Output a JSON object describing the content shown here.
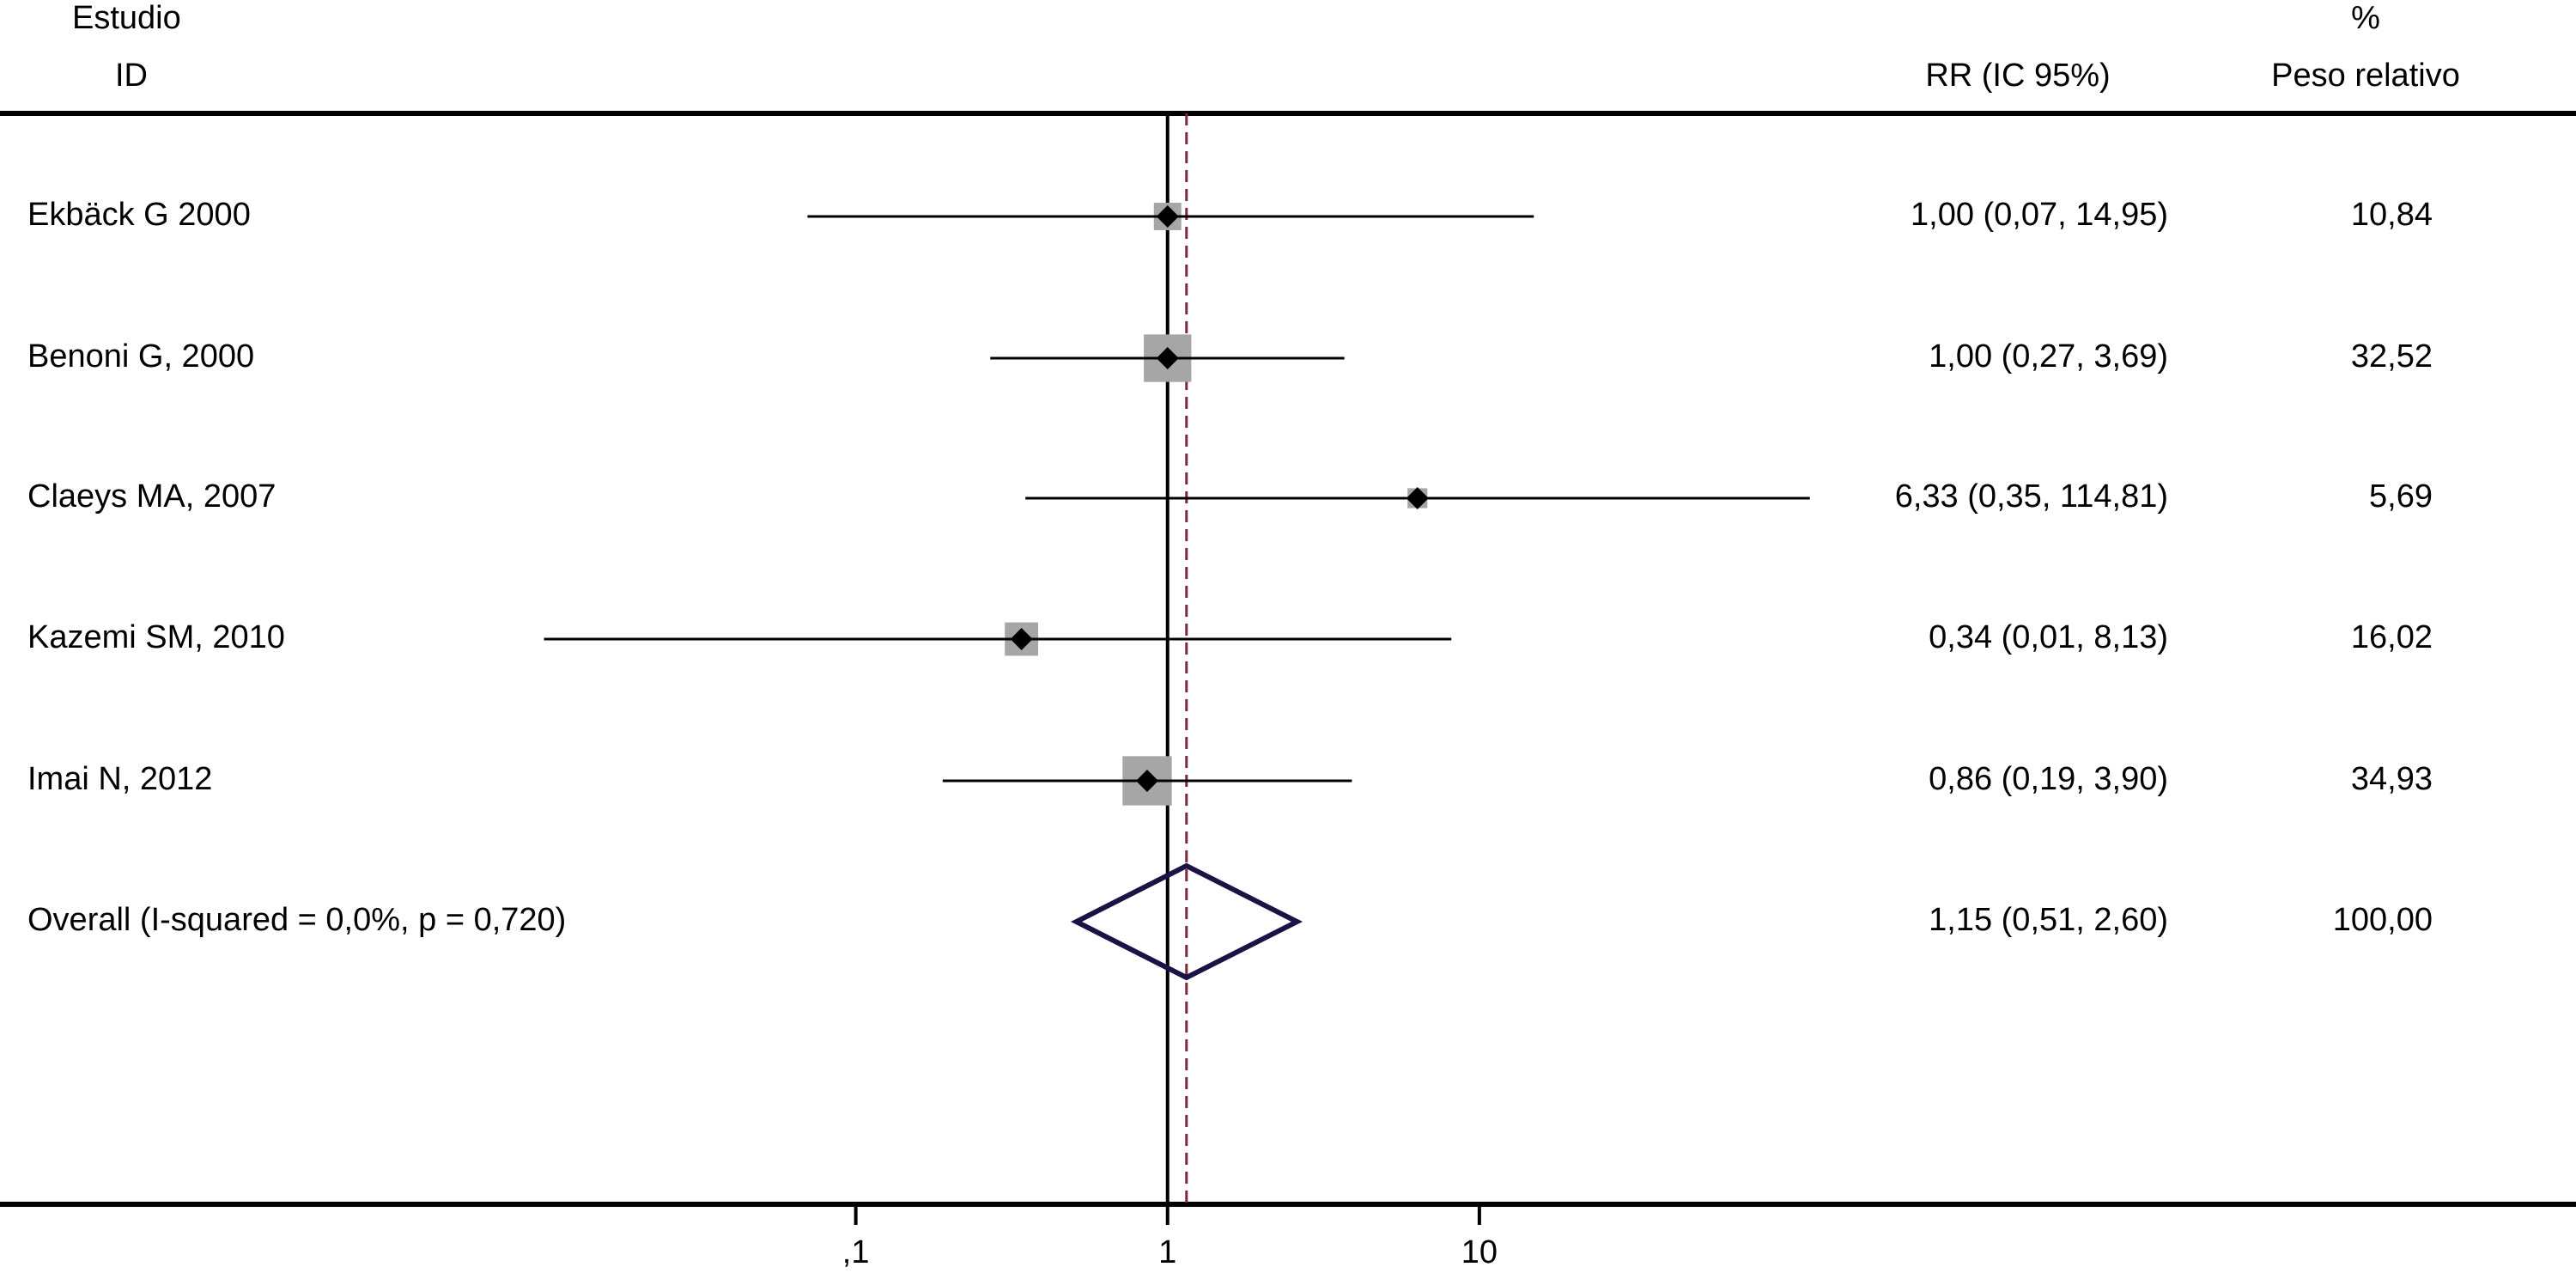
{
  "chart_data": {
    "type": "forest",
    "header": {
      "study_top": "Estudio",
      "study": "ID",
      "effect": "RR (IC 95%)",
      "weight_top": "%",
      "weight": "Peso relativo"
    },
    "categories": [
      "Ekbäck G 2000",
      "Benoni G, 2000",
      "Claeys MA, 2007",
      "Kazemi SM, 2010",
      "Imai N, 2012",
      "Overall  (I-squared = 0,0%, p = 0,720)"
    ],
    "values": [
      1.0,
      1.0,
      6.33,
      0.34,
      0.86,
      1.15
    ],
    "lower": [
      0.07,
      0.27,
      0.35,
      0.01,
      0.19,
      0.51
    ],
    "upper": [
      14.95,
      3.69,
      114.81,
      8.13,
      3.9,
      2.6
    ],
    "value_labels": [
      "1,00 (0,07, 14,95)",
      "1,00 (0,27, 3,69)",
      "6,33 (0,35, 114,81)",
      "0,34 (0,01, 8,13)",
      "0,86 (0,19, 3,90)",
      "1,15 (0,51, 2,60)"
    ],
    "weights": [
      10.84,
      32.52,
      5.69,
      16.02,
      34.93,
      100.0
    ],
    "weight_labels": [
      "10,84",
      "32,52",
      "5,69",
      "16,02",
      "34,93",
      "100,00"
    ],
    "log_x": true,
    "xlim": [
      0.00018,
      32900
    ],
    "xticks": [
      {
        "value": 0.1,
        "label": ",1"
      },
      1,
      10
    ],
    "null_line": 1,
    "box_color": "#a6a6a6",
    "point_color": "#000000",
    "diamond_color": "#1a1446",
    "overall_line_color": "#7a2a3a"
  }
}
